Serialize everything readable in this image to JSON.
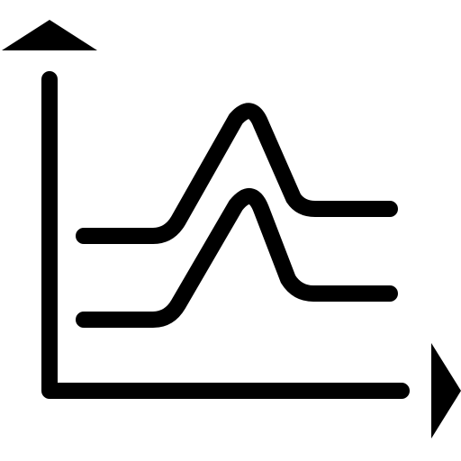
{
  "icon": {
    "name": "line-chart-peaks-icon",
    "color": "#000000",
    "background": "#ffffff",
    "series_count": 2
  }
}
